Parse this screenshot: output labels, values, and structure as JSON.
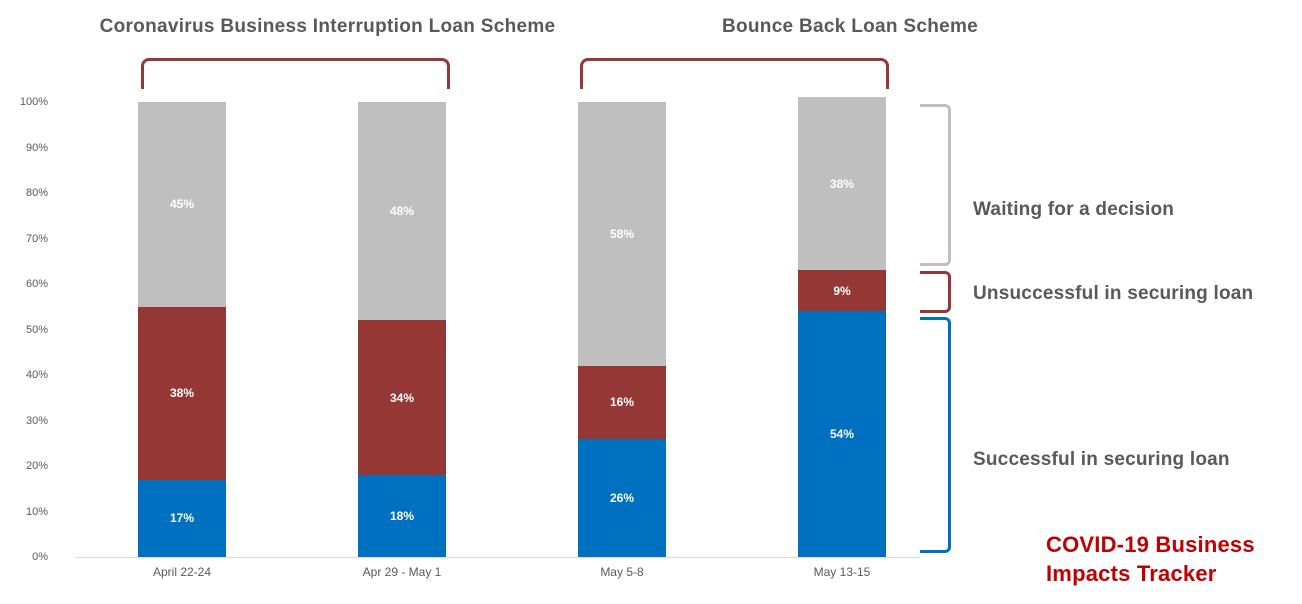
{
  "chart_data": {
    "type": "bar",
    "stacked": true,
    "group_titles": [
      "Coronavirus Business Interruption Loan Scheme",
      "Bounce Back Loan Scheme"
    ],
    "categories": [
      "April 22-24",
      "Apr 29 - May 1",
      "May 5-8",
      "May 13-15"
    ],
    "series": [
      {
        "name": "Successful in securing loan",
        "color": "#0070C0",
        "values": [
          17,
          18,
          26,
          54
        ]
      },
      {
        "name": "Unsuccessful in securing loan",
        "color": "#953735",
        "values": [
          38,
          34,
          16,
          9
        ]
      },
      {
        "name": "Waiting for a decision",
        "color": "#BFBFBF",
        "values": [
          45,
          48,
          58,
          38
        ]
      }
    ],
    "value_suffix": "%",
    "y_ticks": [
      "0%",
      "10%",
      "20%",
      "30%",
      "40%",
      "50%",
      "60%",
      "70%",
      "80%",
      "90%",
      "100%"
    ],
    "ylim": [
      0,
      100
    ],
    "grid": false,
    "legend_position": "right-annotations"
  },
  "annotations": {
    "waiting": "Waiting for a decision",
    "unsuccessful": "Unsuccessful in securing loan",
    "successful": "Successful in securing loan"
  },
  "footer": {
    "tracker": "COVID-19 Business Impacts Tracker"
  },
  "colors": {
    "successful": "#0070C0",
    "unsuccessful": "#953735",
    "waiting": "#BFBFBF",
    "title_text": "#595959",
    "tracker_red": "#C00000",
    "brace_red": "#953735",
    "axis_line": "#D9D9D9"
  }
}
